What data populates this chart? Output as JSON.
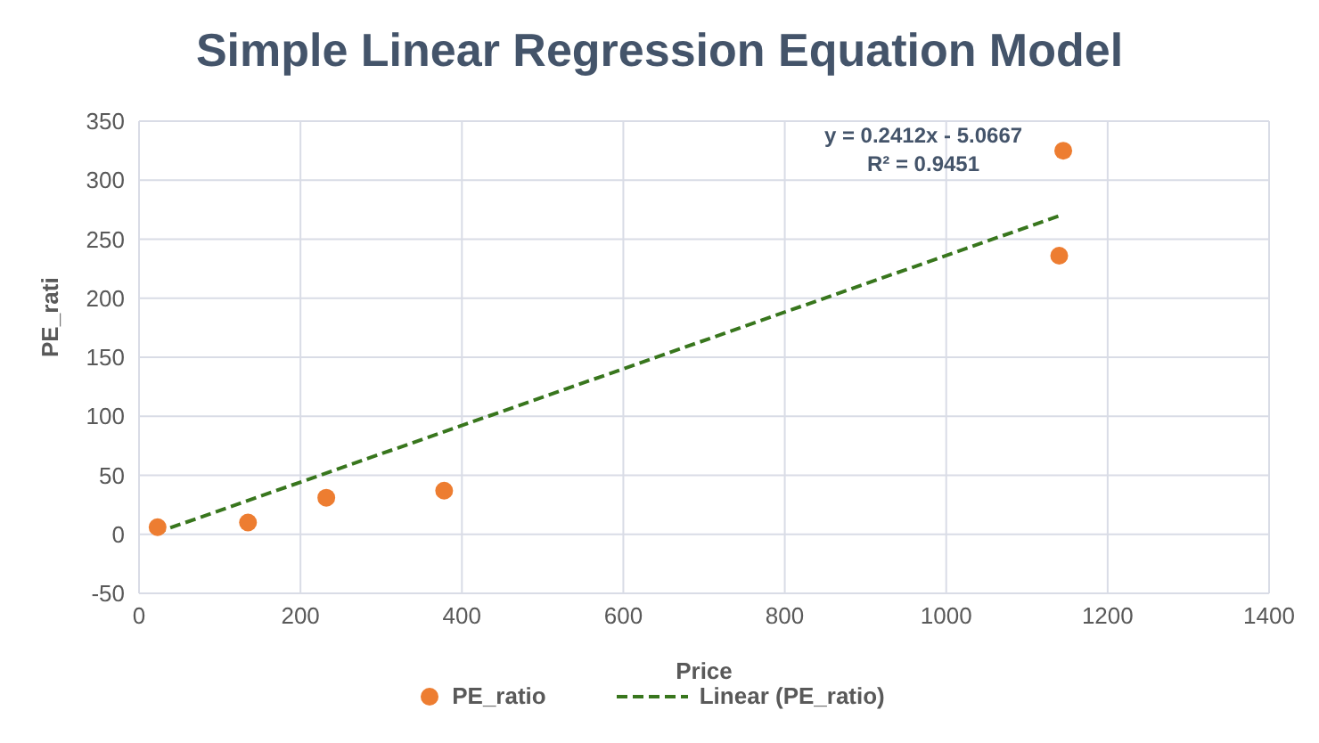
{
  "chart_data": {
    "type": "scatter",
    "title": "Simple Linear Regression Equation Model",
    "xlabel": "Price",
    "ylabel": "PE_rati",
    "annotations": [
      "y = 0.2412x - 5.0667",
      "R² = 0.9451"
    ],
    "series": [
      {
        "name": "PE_ratio",
        "color": "#ed7d31",
        "x": [
          23,
          135,
          232,
          378,
          1140,
          1145
        ],
        "values": [
          6,
          10,
          31,
          37,
          236,
          325
        ]
      },
      {
        "name": "Linear (PE_ratio)",
        "type": "line",
        "color": "#38761d",
        "line_style": "dashed",
        "marker": "none",
        "x": [
          20,
          1145
        ],
        "values": [
          1,
          271
        ]
      }
    ],
    "xlim": [
      0,
      1400
    ],
    "xticks": [
      0,
      200,
      400,
      600,
      800,
      1000,
      1200,
      1400
    ],
    "ylim": [
      -50,
      350
    ],
    "yticks": [
      -50,
      0,
      50,
      100,
      150,
      200,
      250,
      300,
      350
    ],
    "grid": true,
    "legend": "bottom",
    "marker": "circle"
  }
}
